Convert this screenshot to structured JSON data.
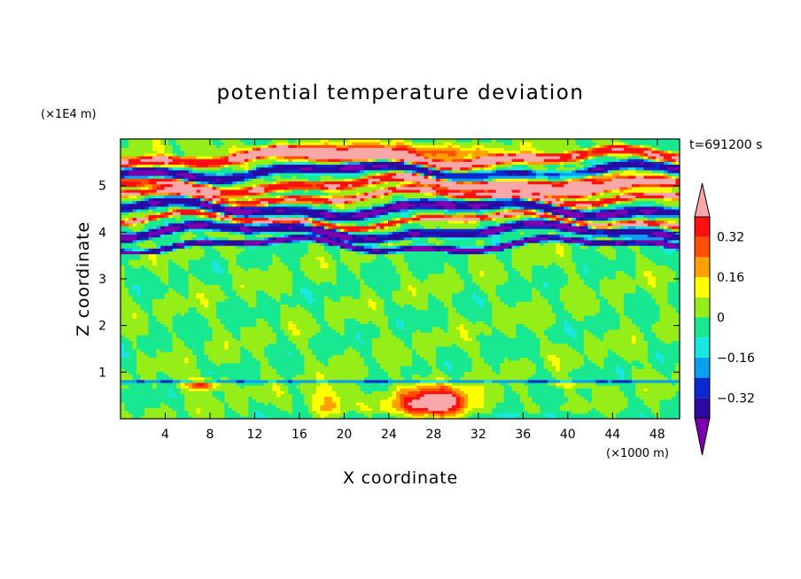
{
  "chart_data": {
    "type": "heatmap",
    "title": "potential temperature deviation",
    "xlabel": "X coordinate",
    "ylabel": "Z coordinate",
    "x_unit": "(×1000 m)",
    "y_unit": "(×1E4 m)",
    "time_label": "t=691200 s",
    "xlim": [
      0,
      50
    ],
    "ylim": [
      0,
      6
    ],
    "x_ticks": [
      4,
      8,
      12,
      16,
      20,
      24,
      28,
      32,
      36,
      40,
      44,
      48
    ],
    "y_ticks": [
      1,
      2,
      3,
      4,
      5
    ],
    "colorbar": {
      "tick_values": [
        0.32,
        0.16,
        0,
        -0.16,
        -0.32
      ],
      "tick_labels": [
        "0.32",
        "0.16",
        "0",
        "−0.16",
        "−0.32"
      ],
      "levels": [
        -0.4,
        -0.32,
        -0.24,
        -0.16,
        -0.08,
        0,
        0.08,
        0.16,
        0.24,
        0.32,
        0.4
      ],
      "colors": [
        "#7a00b0",
        "#2a0aa0",
        "#0a2ad0",
        "#0aa0f0",
        "#18e8e0",
        "#18e890",
        "#96ee18",
        "#ffff00",
        "#ffa000",
        "#ff5000",
        "#ff1010",
        "#f8a8a8"
      ],
      "extend": "both"
    },
    "field_description": {
      "lower_layer": "near-neutral green/teal (values around -0.08 to 0.08) from z=0 to about 3.8",
      "surface_inversion_line": "thin blue line near z=0.8",
      "warm_blob": "red/pink maximum near x=28, z=0.4",
      "upper_layer": "alternating purple (about -0.4) and pink (about +0.4) horizontal bands from z=3.8 to 5.8",
      "top": "green near z=6"
    }
  }
}
